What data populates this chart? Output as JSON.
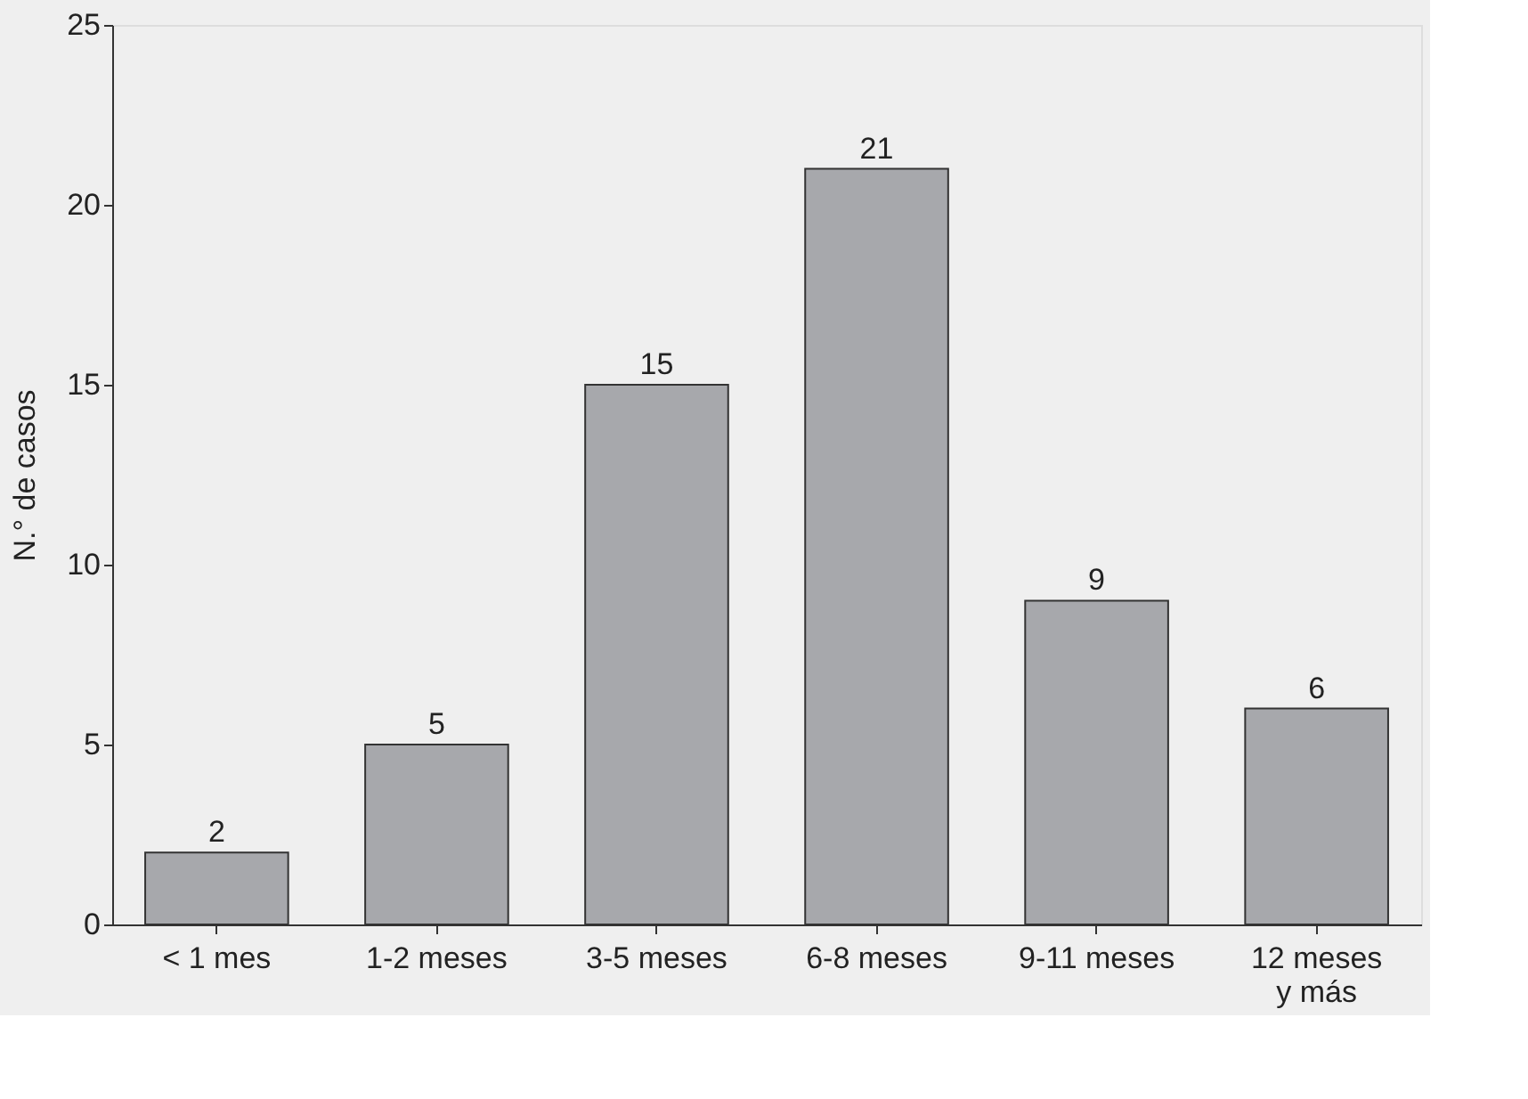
{
  "chart_data": {
    "type": "bar",
    "ylabel": "N.° de casos",
    "categories": [
      "< 1 mes",
      "1-2 meses",
      "3-5 meses",
      "6-8 meses",
      "9-11 meses",
      "12 meses y más"
    ],
    "values": [
      2,
      5,
      15,
      21,
      9,
      6
    ],
    "color": "#a7a8ac",
    "ylim": [
      0,
      25
    ],
    "yticks": [
      0,
      5,
      10,
      15,
      20,
      25
    ],
    "grid": false,
    "data_labels": true
  }
}
